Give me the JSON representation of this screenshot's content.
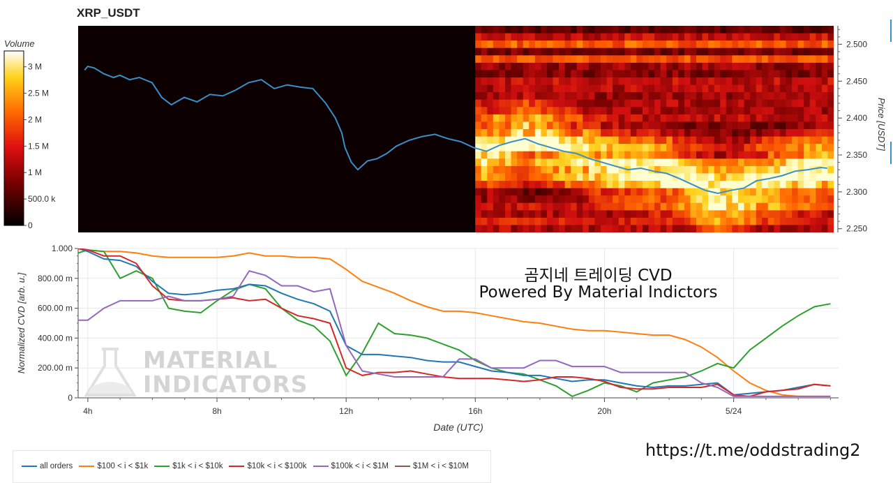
{
  "title": "XRP_USDT",
  "overlay": {
    "line1": "곰지네 트레이딩 CVD",
    "line2": "Powered By Material Indictors",
    "url": "https://t.me/oddstrading2"
  },
  "watermark": {
    "line1": "MATERIAL",
    "line2": "INDICATORS"
  },
  "colors": {
    "all_orders": "#1f77b4",
    "100_1k": "#ff7f0e",
    "1k_10k": "#2ca02c",
    "10k_100k": "#d62728",
    "100k_1M": "#9467bd",
    "1M_10M": "#8c564b",
    "price_line": "#3a8fc9",
    "heatmap_bg": "#0d0000"
  },
  "colorbar": {
    "title": "Volume",
    "ticks": [
      "3 M",
      "2.5 M",
      "2 M",
      "1.5 M",
      "1 M",
      "500.0 k",
      "0"
    ],
    "range": [
      0,
      3300000
    ]
  },
  "heatmap": {
    "price_ticks": [
      "2.500",
      "2.450",
      "2.400",
      "2.350",
      "2.300",
      "2.250"
    ],
    "price_label": "Price [USDT]",
    "ylim": [
      2.245,
      2.525
    ]
  },
  "chart_data": [
    {
      "type": "line",
      "title": "XRP_USDT",
      "ylabel": "Price [USDT]",
      "ylim": [
        2.245,
        2.525
      ],
      "x_hours": [
        3.9,
        4.0,
        4.2,
        4.5,
        4.8,
        5.0,
        5.3,
        5.6,
        6.0,
        6.3,
        6.6,
        7.0,
        7.4,
        7.8,
        8.2,
        8.6,
        9.0,
        9.4,
        9.8,
        10.2,
        10.6,
        11.0,
        11.4,
        11.7,
        11.9,
        12.0,
        12.2,
        12.4,
        12.7,
        13.0,
        13.3,
        13.6,
        14.0,
        14.4,
        14.8,
        15.2,
        15.6,
        16.0,
        16.4,
        16.8,
        17.2,
        17.6,
        18.0,
        18.4,
        18.8,
        19.2,
        19.6,
        20.0,
        20.4,
        20.8,
        21.2,
        21.6,
        22.0,
        22.4,
        22.8,
        23.2,
        23.6,
        24.0,
        24.4,
        24.8,
        25.2,
        25.6,
        26.0,
        26.4,
        26.8,
        27.0
      ],
      "series": [
        {
          "values": [
            2.465,
            2.47,
            2.468,
            2.46,
            2.455,
            2.458,
            2.452,
            2.455,
            2.448,
            2.428,
            2.418,
            2.428,
            2.422,
            2.432,
            2.43,
            2.438,
            2.448,
            2.452,
            2.44,
            2.445,
            2.442,
            2.44,
            2.42,
            2.4,
            2.38,
            2.36,
            2.34,
            2.33,
            2.342,
            2.345,
            2.352,
            2.362,
            2.37,
            2.375,
            2.378,
            2.372,
            2.368,
            2.36,
            2.355,
            2.363,
            2.368,
            2.372,
            2.365,
            2.36,
            2.355,
            2.352,
            2.345,
            2.34,
            2.335,
            2.33,
            2.332,
            2.328,
            2.325,
            2.318,
            2.31,
            2.302,
            2.298,
            2.302,
            2.305,
            2.315,
            2.318,
            2.322,
            2.328,
            2.33,
            2.333,
            2.332
          ]
        }
      ]
    },
    {
      "type": "line",
      "title": "",
      "xlabel": "Date (UTC)",
      "ylabel": "Normalized CVD [arb. u.]",
      "ylim": [
        0,
        1.0
      ],
      "x_ticks": [
        "4h",
        "8h",
        "12h",
        "16h",
        "20h",
        "5/24"
      ],
      "x_tick_hours": [
        4,
        8,
        12,
        16,
        20,
        24
      ],
      "y_ticks": [
        "1.000",
        "800.00 m",
        "600.00 m",
        "400.00 m",
        "200.00 m",
        "0"
      ],
      "x_hours": [
        3.7,
        4.0,
        4.5,
        5.0,
        5.5,
        6.0,
        6.5,
        7.0,
        7.5,
        8.0,
        8.5,
        9.0,
        9.5,
        10.0,
        10.5,
        11.0,
        11.5,
        12.0,
        12.5,
        13.0,
        13.5,
        14.0,
        14.5,
        15.0,
        15.5,
        16.0,
        16.5,
        17.0,
        17.5,
        18.0,
        18.5,
        19.0,
        19.5,
        20.0,
        20.5,
        21.0,
        21.5,
        22.0,
        22.5,
        23.0,
        23.5,
        24.0,
        24.5,
        25.0,
        25.5,
        26.0,
        26.5,
        27.0
      ],
      "series": [
        {
          "name": "all orders",
          "values": [
            1.0,
            0.98,
            0.93,
            0.92,
            0.88,
            0.78,
            0.7,
            0.69,
            0.7,
            0.72,
            0.73,
            0.76,
            0.75,
            0.7,
            0.66,
            0.63,
            0.58,
            0.35,
            0.29,
            0.29,
            0.28,
            0.27,
            0.25,
            0.24,
            0.24,
            0.21,
            0.18,
            0.17,
            0.15,
            0.15,
            0.13,
            0.11,
            0.12,
            0.12,
            0.1,
            0.08,
            0.07,
            0.08,
            0.08,
            0.09,
            0.1,
            0.02,
            0.03,
            0.04,
            0.05,
            0.07,
            0.09,
            0.08
          ]
        },
        {
          "name": "$100 < i < $1k",
          "values": [
            1.0,
            0.99,
            0.98,
            0.98,
            0.97,
            0.95,
            0.94,
            0.94,
            0.94,
            0.94,
            0.95,
            0.97,
            0.95,
            0.95,
            0.94,
            0.94,
            0.93,
            0.86,
            0.78,
            0.74,
            0.7,
            0.65,
            0.61,
            0.58,
            0.58,
            0.57,
            0.55,
            0.53,
            0.51,
            0.5,
            0.48,
            0.46,
            0.45,
            0.45,
            0.44,
            0.43,
            0.42,
            0.42,
            0.39,
            0.34,
            0.27,
            0.18,
            0.1,
            0.05,
            0.02,
            0.01,
            0.01,
            0.01
          ]
        },
        {
          "name": "$1k < i < $10k",
          "values": [
            0.97,
            0.99,
            0.98,
            0.8,
            0.85,
            0.8,
            0.6,
            0.58,
            0.57,
            0.65,
            0.72,
            0.76,
            0.73,
            0.6,
            0.52,
            0.48,
            0.38,
            0.15,
            0.3,
            0.5,
            0.43,
            0.42,
            0.4,
            0.36,
            0.32,
            0.25,
            0.2,
            0.17,
            0.16,
            0.12,
            0.08,
            0.01,
            0.05,
            0.1,
            0.08,
            0.04,
            0.1,
            0.12,
            0.14,
            0.18,
            0.23,
            0.2,
            0.32,
            0.4,
            0.48,
            0.55,
            0.61,
            0.63
          ]
        },
        {
          "name": "$10k < i < $100k",
          "values": [
            1.0,
            0.99,
            0.95,
            0.95,
            0.9,
            0.75,
            0.66,
            0.65,
            0.65,
            0.66,
            0.67,
            0.65,
            0.66,
            0.6,
            0.55,
            0.53,
            0.5,
            0.2,
            0.15,
            0.17,
            0.17,
            0.18,
            0.16,
            0.14,
            0.13,
            0.13,
            0.13,
            0.12,
            0.11,
            0.12,
            0.14,
            0.14,
            0.13,
            0.11,
            0.07,
            0.06,
            0.06,
            0.07,
            0.07,
            0.07,
            0.09,
            0.02,
            0.01,
            0.04,
            0.05,
            0.06,
            0.09,
            0.08
          ]
        },
        {
          "name": "$100k < i < $1M",
          "values": [
            0.52,
            0.52,
            0.6,
            0.65,
            0.65,
            0.65,
            0.68,
            0.65,
            0.65,
            0.66,
            0.68,
            0.85,
            0.82,
            0.75,
            0.75,
            0.71,
            0.73,
            0.35,
            0.18,
            0.16,
            0.14,
            0.14,
            0.14,
            0.14,
            0.26,
            0.26,
            0.2,
            0.2,
            0.2,
            0.25,
            0.25,
            0.21,
            0.21,
            0.21,
            0.17,
            0.17,
            0.17,
            0.17,
            0.17,
            0.1,
            0.07,
            0.01,
            0.01,
            0.01,
            0.01,
            0.01,
            0.01,
            0.01
          ]
        },
        {
          "name": "$1M < i < $10M",
          "values": []
        }
      ]
    }
  ],
  "legend": [
    {
      "label": "all orders",
      "color": "#1f77b4"
    },
    {
      "label": "$100 < i < $1k",
      "color": "#ff7f0e"
    },
    {
      "label": "$1k < i < $10k",
      "color": "#2ca02c"
    },
    {
      "label": "$10k < i < $100k",
      "color": "#d62728"
    },
    {
      "label": "$100k < i < $1M",
      "color": "#9467bd"
    },
    {
      "label": "$1M < i < $10M",
      "color": "#8c564b"
    }
  ]
}
